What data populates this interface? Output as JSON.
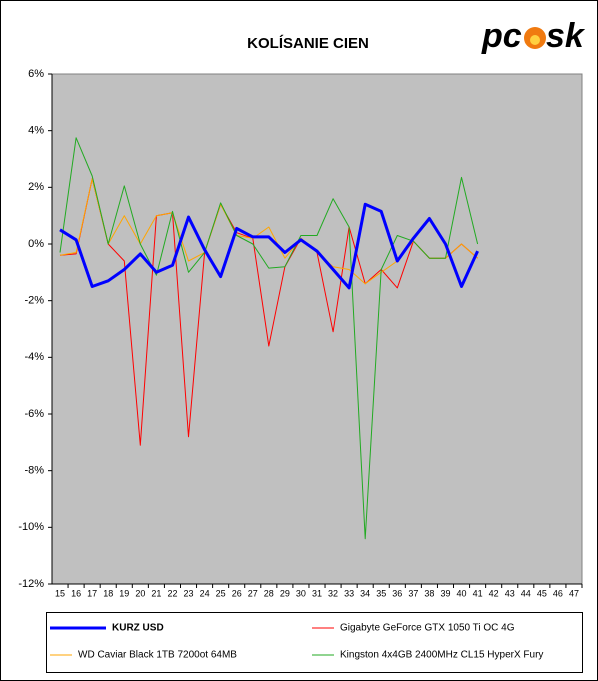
{
  "chart_data": {
    "type": "line",
    "title": "KOLÍSANIE CIEN",
    "logo": [
      "pc",
      "sk"
    ],
    "categories": [
      "15",
      "16",
      "17",
      "18",
      "19",
      "20",
      "21",
      "22",
      "23",
      "24",
      "25",
      "26",
      "27",
      "28",
      "29",
      "30",
      "31",
      "32",
      "33",
      "34",
      "35",
      "36",
      "37",
      "38",
      "39",
      "40",
      "41",
      "42",
      "43",
      "44",
      "45",
      "46",
      "47"
    ],
    "ylim": [
      -12,
      6
    ],
    "yticks": [
      {
        "value": -12,
        "label": "-12%"
      },
      {
        "value": -10,
        "label": "-10%"
      },
      {
        "value": -8,
        "label": "-8%"
      },
      {
        "value": -6,
        "label": "-6%"
      },
      {
        "value": -4,
        "label": "-4%"
      },
      {
        "value": -2,
        "label": "-2%"
      },
      {
        "value": 0,
        "label": "0%"
      },
      {
        "value": 2,
        "label": "2%"
      },
      {
        "value": 4,
        "label": "4%"
      },
      {
        "value": 6,
        "label": "6%"
      }
    ],
    "grid": false,
    "series": [
      {
        "name": "Gigabyte GeForce GTX 1050 Ti OC 4G",
        "color": "#ff0000",
        "width": 1,
        "values": [
          -0.4,
          -0.35,
          2.3,
          0.0,
          -0.6,
          -7.1,
          1.0,
          1.1,
          -6.8,
          -0.3,
          1.4,
          0.4,
          0.2,
          -3.6,
          -0.8,
          0.2,
          -0.3,
          -3.1,
          0.6,
          -1.4,
          -0.9,
          -1.55,
          0.1,
          -0.5,
          -0.5,
          0.0,
          -0.5,
          null,
          null,
          null,
          null,
          null,
          null
        ]
      },
      {
        "name": "WD Caviar Black 1TB 7200ot 64MB",
        "color": "#ffa500",
        "width": 1,
        "values": [
          -0.4,
          -0.3,
          2.3,
          0.0,
          1.0,
          0.0,
          1.0,
          1.1,
          -0.6,
          -0.3,
          1.4,
          0.3,
          0.2,
          0.6,
          -0.5,
          0.2,
          -0.3,
          -0.8,
          -0.9,
          -1.4,
          -1.0,
          -0.6,
          0.1,
          -0.5,
          -0.5,
          0.0,
          -0.5,
          null,
          null,
          null,
          null,
          null,
          null
        ]
      },
      {
        "name": "Kingston 4x4GB 2400MHz CL15 HyperX Fury",
        "color": "#22aa22",
        "width": 1,
        "values": [
          -0.3,
          3.75,
          2.4,
          0.0,
          2.05,
          0.0,
          -1.1,
          1.15,
          -1.0,
          -0.3,
          1.45,
          0.3,
          0.0,
          -0.85,
          -0.8,
          0.3,
          0.3,
          1.6,
          0.6,
          -10.4,
          -0.9,
          0.3,
          0.1,
          -0.5,
          -0.5,
          2.35,
          0.0,
          null,
          null,
          null,
          null,
          null,
          null
        ]
      },
      {
        "name": "KURZ USD",
        "color": "#0000ff",
        "width": 3,
        "values": [
          0.5,
          0.15,
          -1.5,
          -1.3,
          -0.9,
          -0.35,
          -1.0,
          -0.75,
          0.95,
          -0.2,
          -1.15,
          0.55,
          0.25,
          0.25,
          -0.3,
          0.15,
          -0.25,
          -0.9,
          -1.55,
          1.4,
          1.15,
          -0.6,
          0.2,
          0.9,
          0.0,
          -1.5,
          -0.25,
          null,
          null,
          null,
          null,
          null,
          null
        ]
      }
    ]
  }
}
